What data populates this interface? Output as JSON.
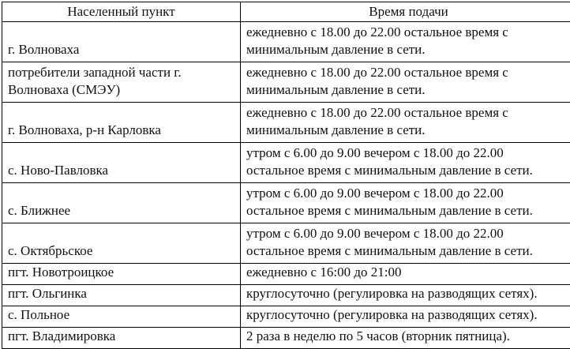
{
  "table": {
    "headers": [
      "Населенный пункт",
      "Время подачи"
    ],
    "rows": [
      {
        "settlement": "г. Волноваха",
        "time": "ежедневно с 18.00 до 22.00 остальное время с\nминимальным давление в сети."
      },
      {
        "settlement": "потребители западной части г.\nВолноваха (СМЭУ)",
        "time": "ежедневно с 18.00 до 22.00 остальное время с\nминимальным давление в сети."
      },
      {
        "settlement": "г. Волноваха, р-н Карловка",
        "time": "ежедневно с 18.00 до 22.00 остальное время с\nминимальным давление в сети."
      },
      {
        "settlement": "с. Ново-Павловка",
        "time": "утром с 6.00 до 9.00 вечером с 18.00 до 22.00\nостальное время с минимальным давление в сети."
      },
      {
        "settlement": "с. Ближнее",
        "time": "утром с 6.00 до 9.00 вечером с 18.00 до 22.00\nостальное время с минимальным давление в сети."
      },
      {
        "settlement": "с. Октябрьское",
        "time": "утром с 6.00 до 9.00 вечером с 18.00 до 22.00\nостальное время с минимальным давление в сети."
      },
      {
        "settlement": "пгт. Новотроицкое",
        "time": "ежедневно с 16:00 до 21:00"
      },
      {
        "settlement": "пгт. Ольгинка",
        "time": "круглосуточно (регулировка на разводящих сетях)."
      },
      {
        "settlement": "с. Польное",
        "time": "круглосуточно (регулировка на разводящих сетях)."
      },
      {
        "settlement": "пгт. Владимировка",
        "time": "2 раза в неделю по 5 часов (вторник пятница)."
      }
    ]
  }
}
